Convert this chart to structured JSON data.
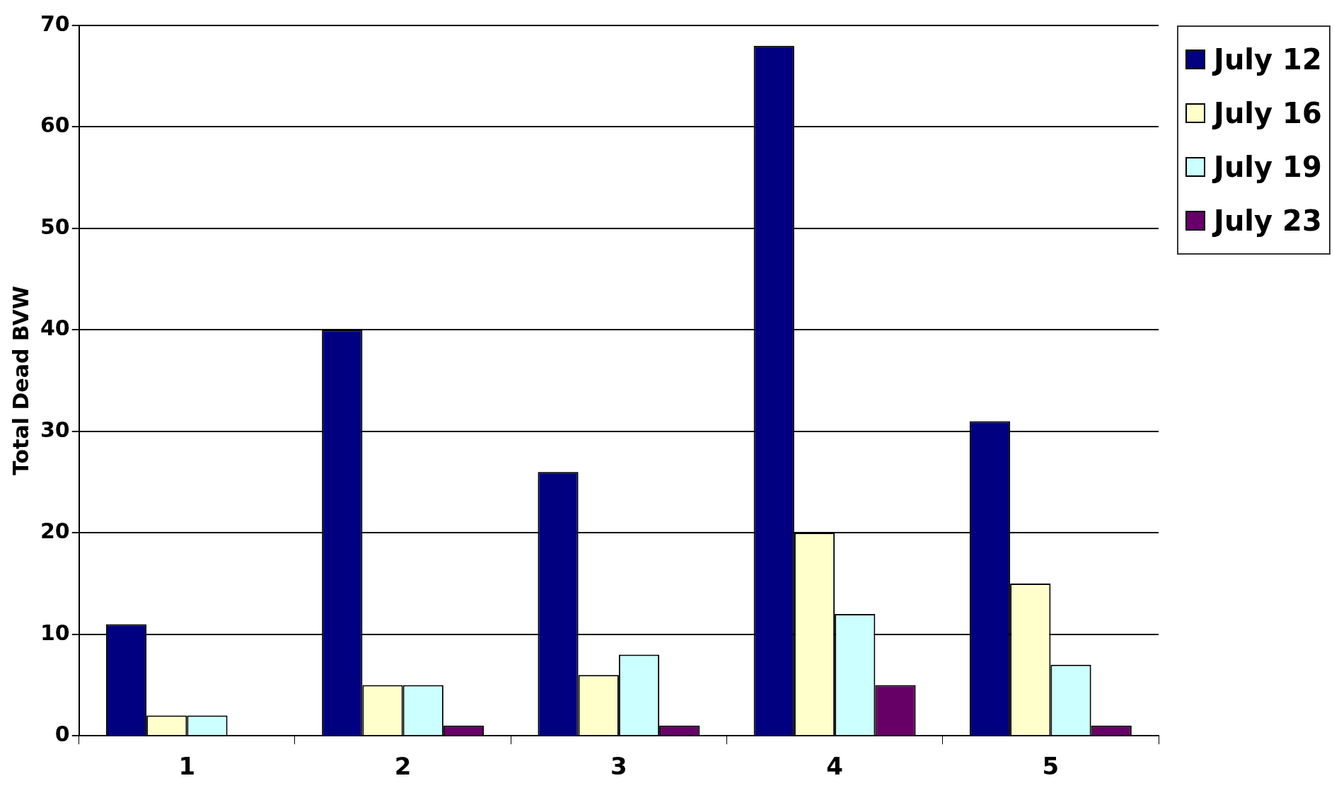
{
  "chart_data": {
    "type": "bar",
    "ylabel": "Total Dead BVW",
    "categories": [
      "1",
      "2",
      "3",
      "4",
      "5"
    ],
    "series": [
      {
        "name": "July 12",
        "color": "#000080",
        "values": [
          11,
          40,
          26,
          68,
          31
        ]
      },
      {
        "name": "July 16",
        "color": "#ffffcc",
        "values": [
          2,
          5,
          6,
          20,
          15
        ]
      },
      {
        "name": "July 19",
        "color": "#ccffff",
        "values": [
          2,
          5,
          8,
          12,
          7
        ]
      },
      {
        "name": "July 23",
        "color": "#660066",
        "values": [
          0,
          1,
          1,
          5,
          1
        ]
      }
    ],
    "ylim": [
      0,
      70
    ],
    "yticks": [
      0,
      10,
      20,
      30,
      40,
      50,
      60,
      70
    ],
    "grid": "y",
    "legend": "top right"
  }
}
